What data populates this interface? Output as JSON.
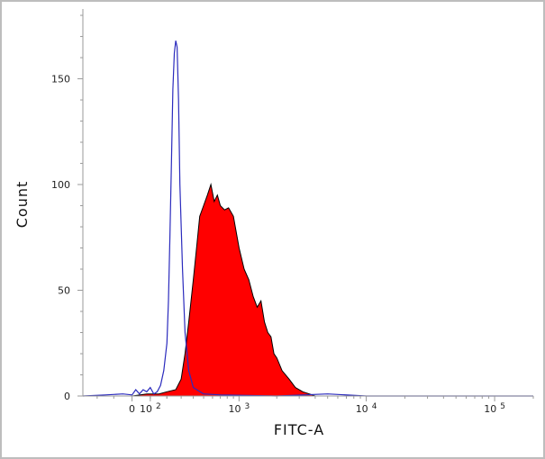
{
  "chart_data": {
    "type": "area",
    "xlabel": "FITC-A",
    "ylabel": "Count",
    "x_scale": "biexponential",
    "ylim": [
      0,
      183
    ],
    "grid": false,
    "y_ticks": [
      {
        "value": 0,
        "label": "0"
      },
      {
        "value": 50,
        "label": "50"
      },
      {
        "value": 100,
        "label": "100"
      },
      {
        "value": 150,
        "label": "150"
      }
    ],
    "x_ticks": [
      {
        "value": 0,
        "base": "0",
        "exp": ""
      },
      {
        "value": 100,
        "base": "10",
        "exp": "2"
      },
      {
        "value": 1000,
        "base": "10",
        "exp": "3"
      },
      {
        "value": 10000,
        "base": "10",
        "exp": "4"
      },
      {
        "value": 100000,
        "base": "10",
        "exp": "5"
      }
    ],
    "series": [
      {
        "style": "outline",
        "color": "#2b2bbd",
        "points": [
          [
            -300,
            0
          ],
          [
            -150,
            0.5
          ],
          [
            -50,
            1
          ],
          [
            0,
            0.5
          ],
          [
            20,
            3
          ],
          [
            40,
            1
          ],
          [
            60,
            3
          ],
          [
            80,
            2
          ],
          [
            100,
            4
          ],
          [
            120,
            1
          ],
          [
            140,
            2
          ],
          [
            160,
            5
          ],
          [
            180,
            12
          ],
          [
            200,
            25
          ],
          [
            210,
            45
          ],
          [
            220,
            75
          ],
          [
            230,
            110
          ],
          [
            240,
            145
          ],
          [
            250,
            162
          ],
          [
            260,
            168
          ],
          [
            270,
            165
          ],
          [
            280,
            140
          ],
          [
            290,
            100
          ],
          [
            310,
            60
          ],
          [
            330,
            30
          ],
          [
            360,
            12
          ],
          [
            400,
            4
          ],
          [
            500,
            1
          ],
          [
            700,
            0.5
          ],
          [
            2000,
            0
          ],
          [
            5000,
            1
          ],
          [
            10000,
            0
          ],
          [
            200000,
            0
          ]
        ]
      },
      {
        "style": "filled",
        "color": "#ff0000",
        "points": [
          [
            -300,
            0
          ],
          [
            0,
            0
          ],
          [
            80,
            1
          ],
          [
            150,
            1
          ],
          [
            200,
            2
          ],
          [
            260,
            3
          ],
          [
            300,
            8
          ],
          [
            330,
            20
          ],
          [
            360,
            35
          ],
          [
            400,
            55
          ],
          [
            430,
            70
          ],
          [
            460,
            85
          ],
          [
            500,
            90
          ],
          [
            540,
            95
          ],
          [
            580,
            100
          ],
          [
            620,
            92
          ],
          [
            660,
            95
          ],
          [
            700,
            90
          ],
          [
            760,
            88
          ],
          [
            820,
            89
          ],
          [
            900,
            85
          ],
          [
            1000,
            70
          ],
          [
            1100,
            60
          ],
          [
            1200,
            55
          ],
          [
            1300,
            47
          ],
          [
            1400,
            42
          ],
          [
            1500,
            45
          ],
          [
            1600,
            35
          ],
          [
            1700,
            30
          ],
          [
            1800,
            28
          ],
          [
            1900,
            20
          ],
          [
            2000,
            18
          ],
          [
            2200,
            12
          ],
          [
            2500,
            8
          ],
          [
            2800,
            4
          ],
          [
            3200,
            2
          ],
          [
            3600,
            1
          ],
          [
            4000,
            0
          ],
          [
            200000,
            0
          ]
        ]
      }
    ]
  }
}
